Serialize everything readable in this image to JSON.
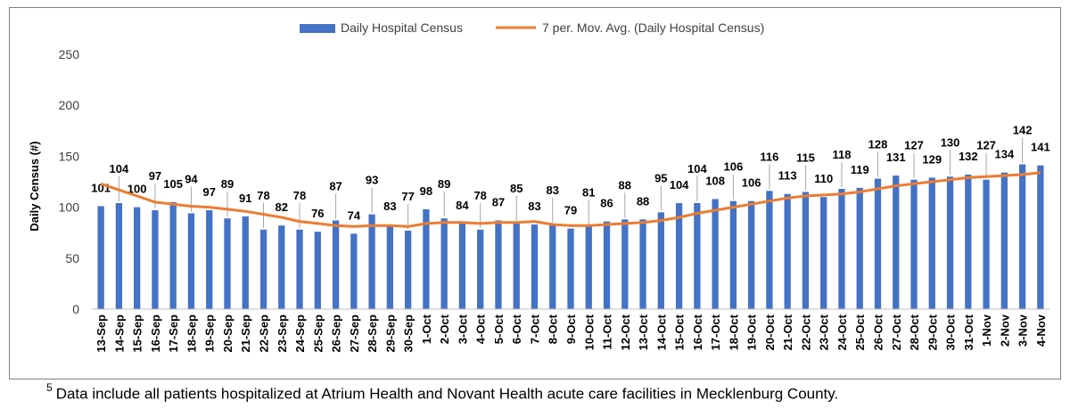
{
  "chart_data": {
    "type": "bar",
    "title": "",
    "xlabel": "",
    "ylabel": "Daily Census (#)",
    "ylim": [
      0,
      250
    ],
    "yticks": [
      0,
      50,
      100,
      150,
      200,
      250
    ],
    "grid": false,
    "legend_position": "top-center",
    "categories": [
      "13-Sep",
      "14-Sep",
      "15-Sep",
      "16-Sep",
      "17-Sep",
      "18-Sep",
      "19-Sep",
      "20-Sep",
      "21-Sep",
      "22-Sep",
      "23-Sep",
      "24-Sep",
      "25-Sep",
      "26-Sep",
      "27-Sep",
      "28-Sep",
      "29-Sep",
      "30-Sep",
      "1-Oct",
      "2-Oct",
      "3-Oct",
      "4-Oct",
      "5-Oct",
      "6-Oct",
      "7-Oct",
      "8-Oct",
      "9-Oct",
      "10-Oct",
      "11-Oct",
      "12-Oct",
      "13-Oct",
      "14-Oct",
      "15-Oct",
      "16-Oct",
      "17-Oct",
      "18-Oct",
      "19-Oct",
      "20-Oct",
      "21-Oct",
      "22-Oct",
      "23-Oct",
      "24-Oct",
      "25-Oct",
      "26-Oct",
      "27-Oct",
      "28-Oct",
      "29-Oct",
      "30-Oct",
      "31-Oct",
      "1-Nov",
      "2-Nov",
      "3-Nov",
      "4-Nov"
    ],
    "series": [
      {
        "name": "Daily Hospital Census",
        "kind": "bar",
        "color": "#4472c4",
        "values": [
          101,
          104,
          100,
          97,
          105,
          94,
          97,
          89,
          91,
          78,
          82,
          78,
          76,
          87,
          74,
          93,
          83,
          77,
          98,
          89,
          84,
          78,
          87,
          85,
          83,
          83,
          79,
          81,
          86,
          88,
          88,
          95,
          104,
          104,
          108,
          106,
          106,
          116,
          113,
          115,
          110,
          118,
          119,
          128,
          131,
          127,
          129,
          130,
          132,
          127,
          134,
          142,
          141
        ]
      },
      {
        "name": "7 per. Mov. Avg. (Daily Hospital Census)",
        "kind": "line",
        "color": "#ed7d31",
        "values": [
          123,
          117,
          111,
          105,
          103,
          101,
          100,
          98,
          96,
          93,
          90,
          86,
          84,
          82,
          81,
          82,
          82,
          81,
          84,
          85,
          85,
          84,
          85,
          85,
          86,
          83,
          82,
          82,
          83,
          84,
          85,
          87,
          90,
          94,
          97,
          100,
          103,
          106,
          109,
          111,
          112,
          113,
          115,
          118,
          121,
          123,
          125,
          127,
          129,
          130,
          131,
          132,
          134
        ]
      }
    ]
  },
  "footnote": {
    "marker": "5",
    "text": "Data include all patients hospitalized at Atrium Health and Novant Health acute care facilities in Mecklenburg County."
  }
}
